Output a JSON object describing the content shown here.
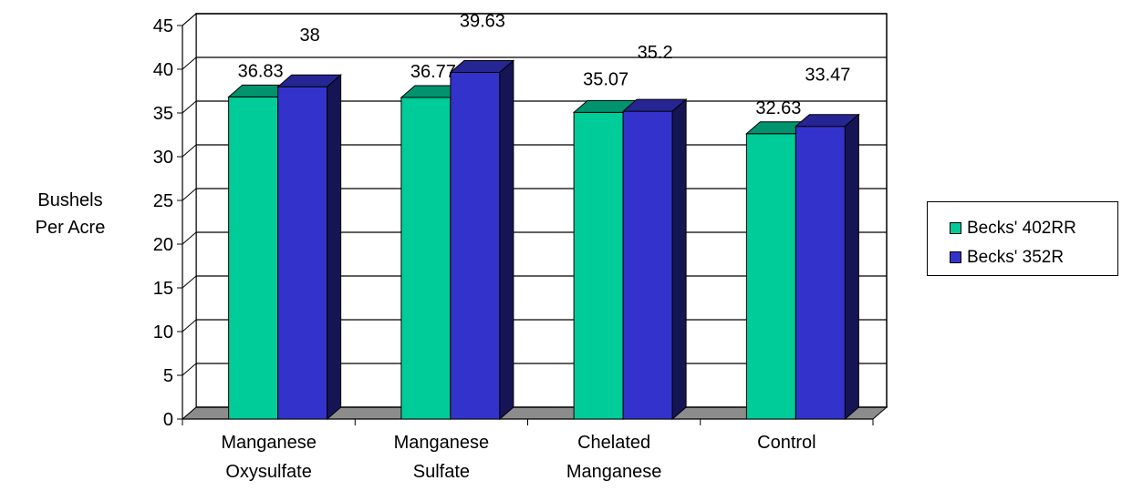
{
  "chart_data": {
    "type": "bar",
    "title": "",
    "ylabel": [
      "Bushels",
      "Per Acre"
    ],
    "xlabel": "",
    "ylim": [
      0,
      45
    ],
    "yticks": [
      0,
      5,
      10,
      15,
      20,
      25,
      30,
      35,
      40,
      45
    ],
    "grid": true,
    "legend_position": "right",
    "categories": [
      [
        "Manganese",
        "Oxysulfate"
      ],
      [
        "Manganese",
        "Sulfate"
      ],
      [
        "Chelated",
        "Manganese"
      ],
      [
        "Control"
      ]
    ],
    "series": [
      {
        "name": "Becks' 402RR",
        "color": "#00CC99",
        "values": [
          36.83,
          36.77,
          35.07,
          32.63
        ]
      },
      {
        "name": "Becks' 352R",
        "color": "#3333CC",
        "values": [
          38,
          39.63,
          35.2,
          33.47
        ]
      }
    ],
    "data_labels": [
      [
        "36.83",
        "36.77",
        "35.07",
        "32.63"
      ],
      [
        "38",
        "39.63",
        "35.2",
        "33.47"
      ]
    ]
  }
}
